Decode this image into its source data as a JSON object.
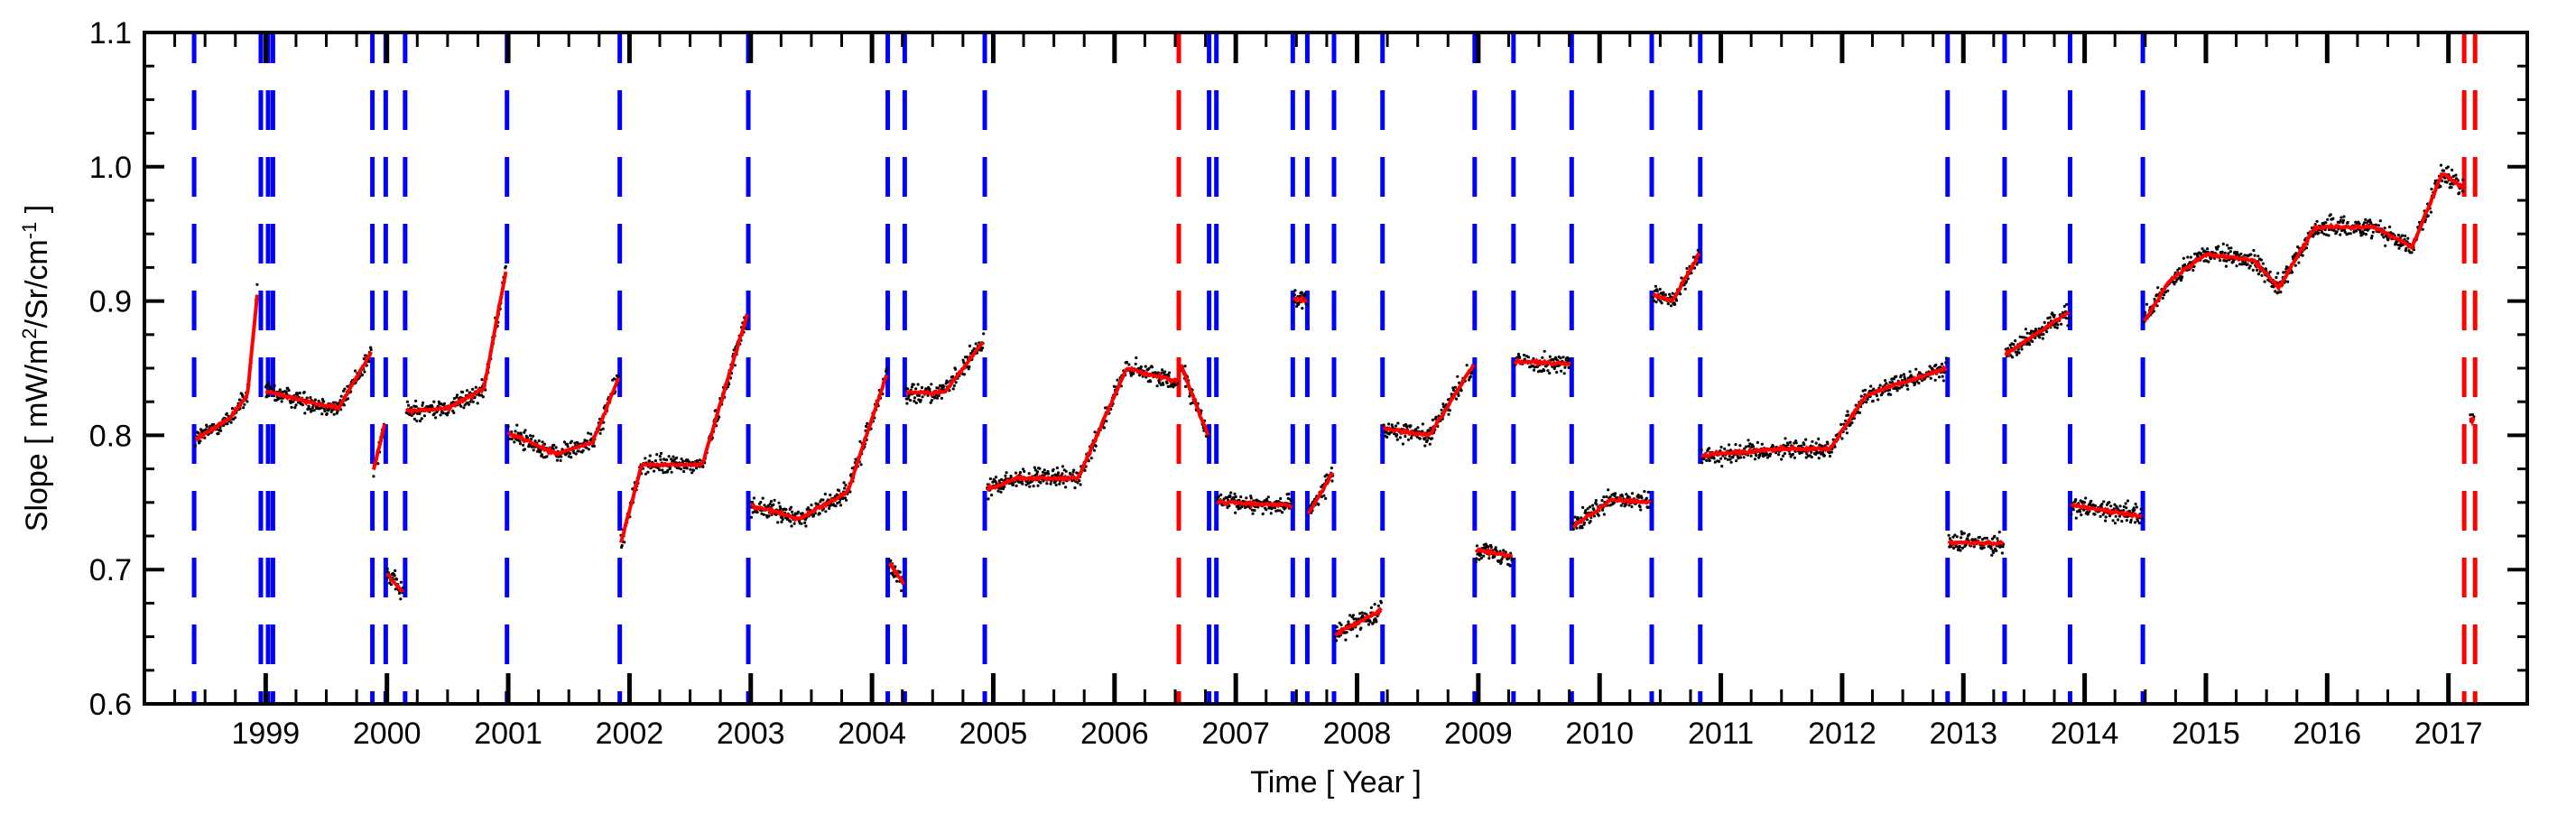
{
  "chart_data": {
    "type": "scatter",
    "xlabel": "Time [ Year ]",
    "ylabel_parts": [
      "Slope [ mW/m",
      "2",
      "/Sr/cm",
      "-1",
      " ]"
    ],
    "xlim": [
      1998.0,
      2017.65
    ],
    "ylim": [
      0.6,
      1.1
    ],
    "y_ticks": [
      0.6,
      0.7,
      0.8,
      0.9,
      1.0,
      1.1
    ],
    "y_tick_labels": [
      "0.6",
      "0.7",
      "0.8",
      "0.9",
      "1.0",
      "1.1"
    ],
    "x_ticks": [
      1999,
      2000,
      2001,
      2002,
      2003,
      2004,
      2005,
      2006,
      2007,
      2008,
      2009,
      2010,
      2011,
      2012,
      2013,
      2014,
      2015,
      2016,
      2017
    ],
    "x_tick_labels": [
      "1999",
      "2000",
      "2001",
      "2002",
      "2003",
      "2004",
      "2005",
      "2006",
      "2007",
      "2008",
      "2009",
      "2010",
      "2011",
      "2012",
      "2013",
      "2014",
      "2015",
      "2016",
      "2017"
    ],
    "grid": false,
    "colors": {
      "points": "#000000",
      "fit": "#ff0000",
      "blue_lines": "#0000ff",
      "red_lines": "#ff0000"
    },
    "vlines_blue": [
      1998.41,
      1998.96,
      1999.02,
      1999.06,
      1999.88,
      1999.99,
      2000.15,
      2000.99,
      2001.92,
      2002.98,
      2004.13,
      2004.27,
      2004.93,
      2006.78,
      2006.84,
      2007.47,
      2007.59,
      2007.81,
      2008.21,
      2008.97,
      2009.29,
      2009.77,
      2010.43,
      2010.83,
      2012.87,
      2013.34,
      2013.88,
      2014.48
    ],
    "vlines_red": [
      2006.53,
      2017.13,
      2017.22
    ],
    "segments": [
      {
        "x": [
          1998.42,
          1998.7,
          1998.85,
          1998.93
        ],
        "y": [
          0.797,
          0.812,
          0.83,
          0.905
        ]
      },
      {
        "x": [
          1999.0,
          1999.3,
          1999.6,
          1999.87
        ],
        "y": [
          0.833,
          0.826,
          0.82,
          0.862
        ]
      },
      {
        "x": [
          1999.89,
          1999.98
        ],
        "y": [
          0.775,
          0.808
        ]
      },
      {
        "x": [
          2000.0,
          2000.13
        ],
        "y": [
          0.697,
          0.683
        ]
      },
      {
        "x": [
          2000.16,
          2000.5,
          2000.8,
          2000.98
        ],
        "y": [
          0.818,
          0.82,
          0.835,
          0.922
        ]
      },
      {
        "x": [
          2001.0,
          2001.4,
          2001.7,
          2001.91
        ],
        "y": [
          0.802,
          0.786,
          0.795,
          0.843
        ]
      },
      {
        "x": [
          2001.93,
          2002.1,
          2002.6,
          2002.97
        ],
        "y": [
          0.72,
          0.778,
          0.778,
          0.89
        ]
      },
      {
        "x": [
          2003.0,
          2003.4,
          2003.8,
          2004.12
        ],
        "y": [
          0.748,
          0.738,
          0.758,
          0.845
        ]
      },
      {
        "x": [
          2004.14,
          2004.26
        ],
        "y": [
          0.705,
          0.69
        ]
      },
      {
        "x": [
          2004.28,
          2004.6,
          2004.92
        ],
        "y": [
          0.832,
          0.832,
          0.87
        ]
      },
      {
        "x": [
          2004.95,
          2005.2,
          2005.7,
          2006.1,
          2006.52
        ],
        "y": [
          0.76,
          0.768,
          0.768,
          0.85,
          0.84
        ]
      },
      {
        "x": [
          2006.55,
          2006.77
        ],
        "y": [
          0.852,
          0.8
        ]
      },
      {
        "x": [
          2006.85,
          2007.46
        ],
        "y": [
          0.75,
          0.748
        ]
      },
      {
        "x": [
          2007.48,
          2007.58
        ],
        "y": [
          0.902,
          0.9
        ]
      },
      {
        "x": [
          2007.6,
          2007.8
        ],
        "y": [
          0.742,
          0.772
        ]
      },
      {
        "x": [
          2007.82,
          2008.2
        ],
        "y": [
          0.652,
          0.67
        ]
      },
      {
        "x": [
          2008.22,
          2008.6,
          2008.96
        ],
        "y": [
          0.805,
          0.8,
          0.853
        ]
      },
      {
        "x": [
          2008.98,
          2009.28
        ],
        "y": [
          0.715,
          0.71
        ]
      },
      {
        "x": [
          2009.3,
          2009.76
        ],
        "y": [
          0.855,
          0.853
        ]
      },
      {
        "x": [
          2009.78,
          2010.1,
          2010.42
        ],
        "y": [
          0.732,
          0.752,
          0.75
        ]
      },
      {
        "x": [
          2010.44,
          2010.6,
          2010.82
        ],
        "y": [
          0.905,
          0.9,
          0.935
        ]
      },
      {
        "x": [
          2010.84,
          2011.5,
          2011.9,
          2012.2,
          2012.86
        ],
        "y": [
          0.785,
          0.79,
          0.79,
          0.83,
          0.85
        ]
      },
      {
        "x": [
          2012.88,
          2013.33
        ],
        "y": [
          0.72,
          0.72
        ]
      },
      {
        "x": [
          2013.35,
          2013.87
        ],
        "y": [
          0.86,
          0.892
        ]
      },
      {
        "x": [
          2013.89,
          2014.47
        ],
        "y": [
          0.748,
          0.74
        ]
      },
      {
        "x": [
          2014.49,
          2014.7,
          2015.0,
          2015.4,
          2015.6,
          2015.9,
          2016.4,
          2016.7,
          2016.95,
          2017.12
        ],
        "y": [
          0.885,
          0.915,
          0.935,
          0.93,
          0.91,
          0.955,
          0.955,
          0.94,
          0.995,
          0.985
        ]
      },
      {
        "x": [
          2017.18,
          2017.21
        ],
        "y": [
          0.812,
          0.812
        ]
      }
    ]
  }
}
